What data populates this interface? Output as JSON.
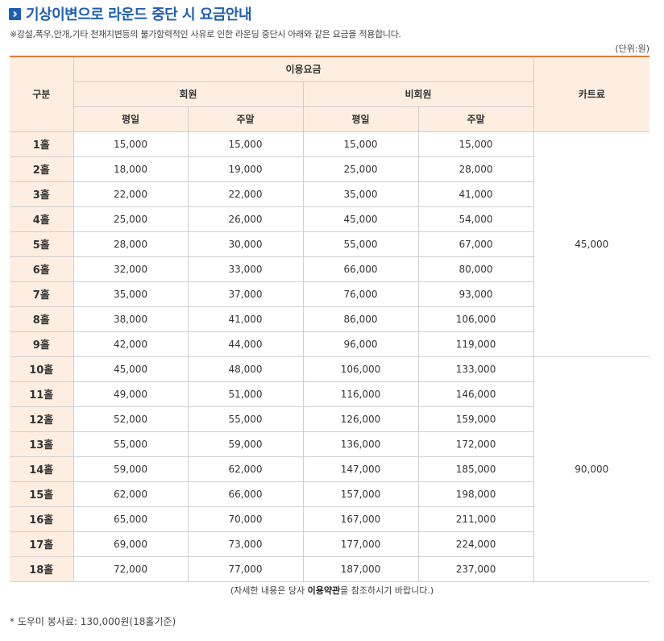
{
  "title": "기상이변으로 라운드 중단 시 요금안내",
  "note": "※강설,폭우,안개,기타 천재지변등의 불가항력적인 사유로 인한 라운딩 중단시 아래와 같은 요금을 적용합니다.",
  "unit": "(단위:원)",
  "table": {
    "header": {
      "division": "구분",
      "usage_fee": "이용요금",
      "member": "회원",
      "non_member": "비회원",
      "weekday": "평일",
      "weekend": "주말",
      "cart_fee": "카트료"
    },
    "rows": [
      {
        "hole": "1홀",
        "member_weekday": "15,000",
        "member_weekend": "15,000",
        "nonmember_weekday": "15,000",
        "nonmember_weekend": "15,000"
      },
      {
        "hole": "2홀",
        "member_weekday": "18,000",
        "member_weekend": "19,000",
        "nonmember_weekday": "25,000",
        "nonmember_weekend": "28,000"
      },
      {
        "hole": "3홀",
        "member_weekday": "22,000",
        "member_weekend": "22,000",
        "nonmember_weekday": "35,000",
        "nonmember_weekend": "41,000"
      },
      {
        "hole": "4홀",
        "member_weekday": "25,000",
        "member_weekend": "26,000",
        "nonmember_weekday": "45,000",
        "nonmember_weekend": "54,000"
      },
      {
        "hole": "5홀",
        "member_weekday": "28,000",
        "member_weekend": "30,000",
        "nonmember_weekday": "55,000",
        "nonmember_weekend": "67,000"
      },
      {
        "hole": "6홀",
        "member_weekday": "32,000",
        "member_weekend": "33,000",
        "nonmember_weekday": "66,000",
        "nonmember_weekend": "80,000"
      },
      {
        "hole": "7홀",
        "member_weekday": "35,000",
        "member_weekend": "37,000",
        "nonmember_weekday": "76,000",
        "nonmember_weekend": "93,000"
      },
      {
        "hole": "8홀",
        "member_weekday": "38,000",
        "member_weekend": "41,000",
        "nonmember_weekday": "86,000",
        "nonmember_weekend": "106,000"
      },
      {
        "hole": "9홀",
        "member_weekday": "42,000",
        "member_weekend": "44,000",
        "nonmember_weekday": "96,000",
        "nonmember_weekend": "119,000"
      },
      {
        "hole": "10홀",
        "member_weekday": "45,000",
        "member_weekend": "48,000",
        "nonmember_weekday": "106,000",
        "nonmember_weekend": "133,000"
      },
      {
        "hole": "11홀",
        "member_weekday": "49,000",
        "member_weekend": "51,000",
        "nonmember_weekday": "116,000",
        "nonmember_weekend": "146,000"
      },
      {
        "hole": "12홀",
        "member_weekday": "52,000",
        "member_weekend": "55,000",
        "nonmember_weekday": "126,000",
        "nonmember_weekend": "159,000"
      },
      {
        "hole": "13홀",
        "member_weekday": "55,000",
        "member_weekend": "59,000",
        "nonmember_weekday": "136,000",
        "nonmember_weekend": "172,000"
      },
      {
        "hole": "14홀",
        "member_weekday": "59,000",
        "member_weekend": "62,000",
        "nonmember_weekday": "147,000",
        "nonmember_weekend": "185,000"
      },
      {
        "hole": "15홀",
        "member_weekday": "62,000",
        "member_weekend": "66,000",
        "nonmember_weekday": "157,000",
        "nonmember_weekend": "198,000"
      },
      {
        "hole": "16홀",
        "member_weekday": "65,000",
        "member_weekend": "70,000",
        "nonmember_weekday": "167,000",
        "nonmember_weekend": "211,000"
      },
      {
        "hole": "17홀",
        "member_weekday": "69,000",
        "member_weekend": "73,000",
        "nonmember_weekday": "177,000",
        "nonmember_weekend": "224,000"
      },
      {
        "hole": "18홀",
        "member_weekday": "72,000",
        "member_weekend": "77,000",
        "nonmember_weekday": "187,000",
        "nonmember_weekend": "237,000"
      }
    ],
    "cart_fee_front": "45,000",
    "cart_fee_back": "90,000"
  },
  "footnote": {
    "before": "(자세한 내용은 당사 ",
    "bold": "이용약관",
    "after": "을 참조하시기 바랍니다.)"
  },
  "caddie_fee": "* 도우미 봉사료: 130,000원(18홀기준)",
  "colors": {
    "title_blue": "#1f5fb4",
    "header_bg": "#fdeee1",
    "header_top_border": "#e07a3c"
  }
}
